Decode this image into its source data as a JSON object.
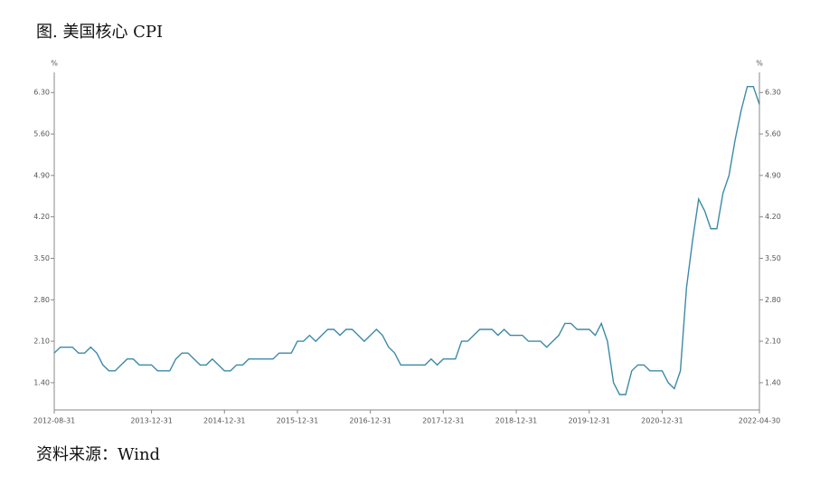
{
  "chart_data": {
    "type": "line",
    "title": "图. 美国核心 CPI",
    "source": "资料来源：Wind",
    "y_unit": "%",
    "y2_unit": "%",
    "categories": [
      "2012-08-31",
      null,
      null,
      null,
      null,
      null,
      null,
      null,
      null,
      null,
      null,
      null,
      null,
      null,
      null,
      null,
      "2013-12-31",
      null,
      null,
      null,
      null,
      null,
      null,
      null,
      null,
      null,
      null,
      null,
      "2014-12-31",
      null,
      null,
      null,
      null,
      null,
      null,
      null,
      null,
      null,
      null,
      null,
      "2015-12-31",
      null,
      null,
      null,
      null,
      null,
      null,
      null,
      null,
      null,
      null,
      null,
      "2016-12-31",
      null,
      null,
      null,
      null,
      null,
      null,
      null,
      null,
      null,
      null,
      null,
      "2017-12-31",
      null,
      null,
      null,
      null,
      null,
      null,
      null,
      null,
      null,
      null,
      null,
      "2018-12-31",
      null,
      null,
      null,
      null,
      null,
      null,
      null,
      null,
      null,
      null,
      null,
      "2019-12-31",
      null,
      null,
      null,
      null,
      null,
      null,
      null,
      null,
      null,
      null,
      null,
      "2020-12-31",
      null,
      null,
      null,
      null,
      null,
      null,
      null,
      null,
      null,
      null,
      null,
      null,
      null,
      null,
      null,
      "2022-04-30"
    ],
    "series": [
      {
        "name": "美国核心CPI",
        "color": "#3d8aa8",
        "values": [
          1.9,
          2.0,
          2.0,
          2.0,
          1.9,
          1.9,
          2.0,
          1.9,
          1.7,
          1.6,
          1.6,
          1.7,
          1.8,
          1.8,
          1.7,
          1.7,
          1.7,
          1.6,
          1.6,
          1.6,
          1.8,
          1.9,
          1.9,
          1.8,
          1.7,
          1.7,
          1.8,
          1.7,
          1.6,
          1.6,
          1.7,
          1.7,
          1.8,
          1.8,
          1.8,
          1.8,
          1.8,
          1.9,
          1.9,
          1.9,
          2.1,
          2.1,
          2.2,
          2.1,
          2.2,
          2.3,
          2.3,
          2.2,
          2.3,
          2.3,
          2.2,
          2.1,
          2.2,
          2.3,
          2.2,
          2.0,
          1.9,
          1.7,
          1.7,
          1.7,
          1.7,
          1.7,
          1.8,
          1.7,
          1.8,
          1.8,
          1.8,
          2.1,
          2.1,
          2.2,
          2.3,
          2.3,
          2.3,
          2.2,
          2.3,
          2.2,
          2.2,
          2.2,
          2.1,
          2.1,
          2.1,
          2.0,
          2.1,
          2.2,
          2.4,
          2.4,
          2.3,
          2.3,
          2.3,
          2.2,
          2.4,
          2.1,
          1.4,
          1.2,
          1.2,
          1.6,
          1.7,
          1.7,
          1.6,
          1.6,
          1.6,
          1.4,
          1.3,
          1.6,
          3.0,
          3.8,
          4.5,
          4.3,
          4.0,
          4.0,
          4.6,
          4.9,
          5.5,
          6.0,
          6.4,
          6.4,
          6.1
        ]
      }
    ],
    "ylim": [
      0.94,
      6.64
    ],
    "yticks": [
      {
        "value": 1.4,
        "label": "1.40"
      },
      {
        "value": 2.1,
        "label": "2.10"
      },
      {
        "value": 2.8,
        "label": "2.80"
      },
      {
        "value": 3.5,
        "label": "3.50"
      },
      {
        "value": 4.2,
        "label": "4.20"
      },
      {
        "value": 4.9,
        "label": "4.90"
      },
      {
        "value": 5.6,
        "label": "5.60"
      },
      {
        "value": 6.3,
        "label": "6.30"
      }
    ],
    "y2lim": [
      0.94,
      6.64
    ],
    "y2ticks": [
      {
        "value": 1.4,
        "label": "1.40"
      },
      {
        "value": 2.1,
        "label": "2.10"
      },
      {
        "value": 2.8,
        "label": "2.80"
      },
      {
        "value": 3.5,
        "label": "3.50"
      },
      {
        "value": 4.2,
        "label": "4.20"
      },
      {
        "value": 4.9,
        "label": "4.90"
      },
      {
        "value": 5.6,
        "label": "5.60"
      },
      {
        "value": 6.3,
        "label": "6.30"
      }
    ],
    "grid": false
  }
}
